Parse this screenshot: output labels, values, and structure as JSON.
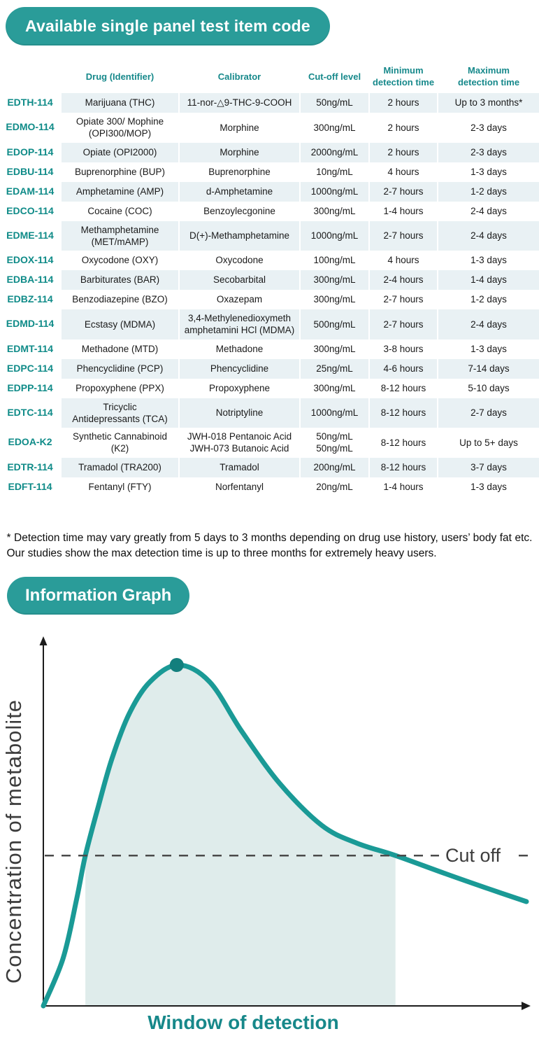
{
  "section1": {
    "title": "Available single panel test item code"
  },
  "table": {
    "headers": [
      "Drug (Identifier)",
      "Calibrator",
      "Cut-off level",
      "Minimum\ndetection time",
      "Maximum\ndetection time"
    ],
    "rows": [
      {
        "code": "EDTH-114",
        "drug": "Marijuana (THC)",
        "calibrator": "11-nor-△9-THC-9-COOH",
        "cutoff": "50ng/mL",
        "min": "2 hours",
        "max": "Up to 3 months*"
      },
      {
        "code": "EDMO-114",
        "drug": "Opiate 300/ Mophine\n(OPI300/MOP)",
        "calibrator": "Morphine",
        "cutoff": "300ng/mL",
        "min": "2 hours",
        "max": "2-3 days"
      },
      {
        "code": "EDOP-114",
        "drug": "Opiate (OPI2000)",
        "calibrator": "Morphine",
        "cutoff": "2000ng/mL",
        "min": "2 hours",
        "max": "2-3 days"
      },
      {
        "code": "EDBU-114",
        "drug": "Buprenorphine (BUP)",
        "calibrator": "Buprenorphine",
        "cutoff": "10ng/mL",
        "min": "4 hours",
        "max": "1-3 days"
      },
      {
        "code": "EDAM-114",
        "drug": "Amphetamine (AMP)",
        "calibrator": "d-Amphetamine",
        "cutoff": "1000ng/mL",
        "min": "2-7 hours",
        "max": "1-2 days"
      },
      {
        "code": "EDCO-114",
        "drug": "Cocaine (COC)",
        "calibrator": "Benzoylecgonine",
        "cutoff": "300ng/mL",
        "min": "1-4 hours",
        "max": "2-4 days"
      },
      {
        "code": "EDME-114",
        "drug": "Methamphetamine\n(MET/mAMP)",
        "calibrator": "D(+)-Methamphetamine",
        "cutoff": "1000ng/mL",
        "min": "2-7 hours",
        "max": "2-4 days"
      },
      {
        "code": "EDOX-114",
        "drug": "Oxycodone (OXY)",
        "calibrator": "Oxycodone",
        "cutoff": "100ng/mL",
        "min": "4 hours",
        "max": "1-3 days"
      },
      {
        "code": "EDBA-114",
        "drug": "Barbiturates (BAR)",
        "calibrator": "Secobarbital",
        "cutoff": "300ng/mL",
        "min": "2-4 hours",
        "max": "1-4 days"
      },
      {
        "code": "EDBZ-114",
        "drug": "Benzodiazepine (BZO)",
        "calibrator": "Oxazepam",
        "cutoff": "300ng/mL",
        "min": "2-7 hours",
        "max": "1-2 days"
      },
      {
        "code": "EDMD-114",
        "drug": "Ecstasy (MDMA)",
        "calibrator": "3,4-Methylenedioxymeth\namphetamini HCl (MDMA)",
        "cutoff": "500ng/mL",
        "min": "2-7 hours",
        "max": "2-4 days"
      },
      {
        "code": "EDMT-114",
        "drug": "Methadone (MTD)",
        "calibrator": "Methadone",
        "cutoff": "300ng/mL",
        "min": "3-8 hours",
        "max": "1-3 days"
      },
      {
        "code": "EDPC-114",
        "drug": "Phencyclidine (PCP)",
        "calibrator": "Phencyclidine",
        "cutoff": "25ng/mL",
        "min": "4-6 hours",
        "max": "7-14 days"
      },
      {
        "code": "EDPP-114",
        "drug": "Propoxyphene (PPX)",
        "calibrator": "Propoxyphene",
        "cutoff": "300ng/mL",
        "min": "8-12 hours",
        "max": "5-10 days"
      },
      {
        "code": "EDTC-114",
        "drug": "Tricyclic\nAntidepressants (TCA)",
        "calibrator": "Notriptyline",
        "cutoff": "1000ng/mL",
        "min": "8-12 hours",
        "max": "2-7 days"
      },
      {
        "code": "EDOA-K2",
        "drug": "Synthetic Cannabinoid\n(K2)",
        "calibrator": "JWH-018 Pentanoic Acid\nJWH-073 Butanoic Acid",
        "cutoff": "50ng/mL\n50ng/mL",
        "min": "8-12 hours",
        "max": "Up to 5+ days"
      },
      {
        "code": "EDTR-114",
        "drug": "Tramadol (TRA200)",
        "calibrator": "Tramadol",
        "cutoff": "200ng/mL",
        "min": "8-12 hours",
        "max": "3-7 days"
      },
      {
        "code": "EDFT-114",
        "drug": "Fentanyl (FTY)",
        "calibrator": "Norfentanyl",
        "cutoff": "20ng/mL",
        "min": "1-4 hours",
        "max": "1-3 days"
      }
    ]
  },
  "footnote": {
    "text": "* Detection time may vary greatly from 5 days to 3 months depending on drug use history, users’ body fat etc. Our studies show the max detection time is up to three months for extremely heavy users."
  },
  "section2": {
    "title": "Information Graph"
  },
  "chart_data": {
    "type": "area",
    "title": "",
    "xlabel": "Window of detection",
    "ylabel": "Concentration of metabolite",
    "cutoff_label": "Cut off",
    "cutoff_norm": 0.441,
    "window_norm": [
      0.087,
      0.729
    ],
    "curve_points_norm": [
      [
        0.0,
        0.0
      ],
      [
        0.041,
        0.14
      ],
      [
        0.069,
        0.314
      ],
      [
        0.087,
        0.441
      ],
      [
        0.113,
        0.581
      ],
      [
        0.142,
        0.725
      ],
      [
        0.178,
        0.858
      ],
      [
        0.221,
        0.951
      ],
      [
        0.279,
        1.0
      ],
      [
        0.344,
        0.951
      ],
      [
        0.41,
        0.807
      ],
      [
        0.489,
        0.653
      ],
      [
        0.576,
        0.53
      ],
      [
        0.648,
        0.478
      ],
      [
        0.729,
        0.441
      ],
      [
        0.836,
        0.386
      ],
      [
        0.923,
        0.343
      ],
      [
        1.0,
        0.306
      ]
    ],
    "peak_marker": true,
    "colors": {
      "curve": "#1a9a96",
      "area_fill": "#dfeceb",
      "peak_dot": "#137f7d",
      "axis": "#1c1c1c",
      "cutoff_line": "#4a4a4a",
      "badge": "#2a9c99",
      "stripe": "#e9f1f4",
      "header_text": "#17898b",
      "code_text": "#0f8b88"
    }
  }
}
